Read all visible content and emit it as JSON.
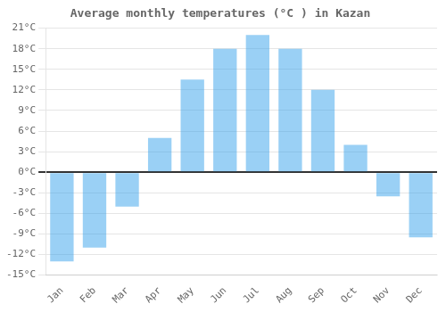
{
  "chart_data": {
    "type": "bar",
    "title": "Average monthly temperatures (°C ) in Kazan",
    "categories": [
      "Jan",
      "Feb",
      "Mar",
      "Apr",
      "May",
      "Jun",
      "Jul",
      "Aug",
      "Sep",
      "Oct",
      "Nov",
      "Dec"
    ],
    "values": [
      -13,
      -11,
      -5,
      5,
      13.5,
      18,
      20,
      18,
      12,
      4,
      -3.5,
      -9.5
    ],
    "ylim": [
      -15,
      21
    ],
    "yticks": [
      {
        "value": -15,
        "label": "-15°C"
      },
      {
        "value": -12,
        "label": "-12°C"
      },
      {
        "value": -9,
        "label": "-9°C"
      },
      {
        "value": -6,
        "label": "-6°C"
      },
      {
        "value": -3,
        "label": "-3°C"
      },
      {
        "value": 0,
        "label": "0°C"
      },
      {
        "value": 3,
        "label": "3°C"
      },
      {
        "value": 6,
        "label": "6°C"
      },
      {
        "value": 9,
        "label": "9°C"
      },
      {
        "value": 12,
        "label": "12°C"
      },
      {
        "value": 15,
        "label": "15°C"
      },
      {
        "value": 18,
        "label": "18°C"
      },
      {
        "value": 21,
        "label": "21°C"
      }
    ],
    "grid": true
  }
}
